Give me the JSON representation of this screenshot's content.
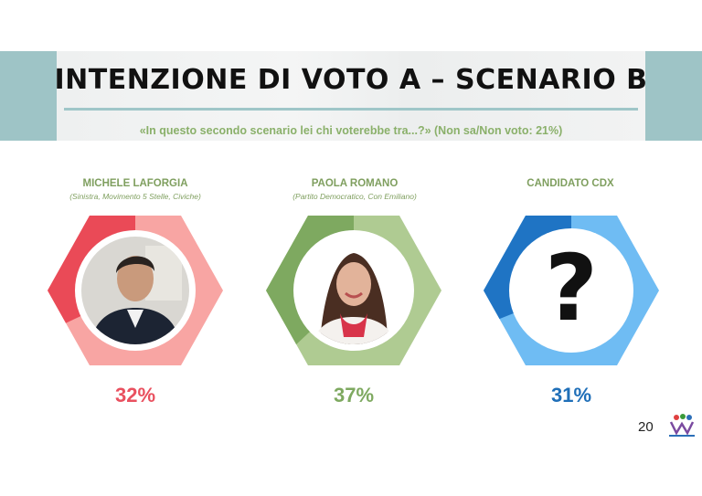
{
  "header": {
    "title": "INTENZIONE DI VOTO A – SCENARIO B",
    "question": "«In questo secondo scenario lei chi voterebbe tra...?» (Non sa/Non voto: 21%)"
  },
  "page_number": "20",
  "colors": {
    "laforgia_dark": "#ea4a57",
    "laforgia_light": "#f8a5a3",
    "romano_dark": "#7ea960",
    "romano_light": "#afcb92",
    "cdx_dark": "#1f74c4",
    "cdx_light": "#6fbcf3",
    "label_green": "#7f9f5f"
  },
  "candidates": [
    {
      "name": "MICHELE LAFORGIA",
      "party": "(Sinistra, Movimento 5 Stelle, Civiche)",
      "percent_label": "32%",
      "percent_color": "#e9505f"
    },
    {
      "name": "PAOLA ROMANO",
      "party": "(Partito Democratico, Con Emiliano)",
      "percent_label": "37%",
      "percent_color": "#7ea960"
    },
    {
      "name": "CANDIDATO CDX",
      "party": "",
      "percent_label": "31%",
      "percent_color": "#1f6fb8",
      "symbol": "?"
    }
  ],
  "chart_data": {
    "type": "pie",
    "categories": [
      "MICHELE LAFORGIA",
      "PAOLA ROMANO",
      "CANDIDATO CDX"
    ],
    "values": [
      32,
      37,
      31
    ],
    "title": "INTENZIONE DI VOTO A – SCENARIO B"
  }
}
